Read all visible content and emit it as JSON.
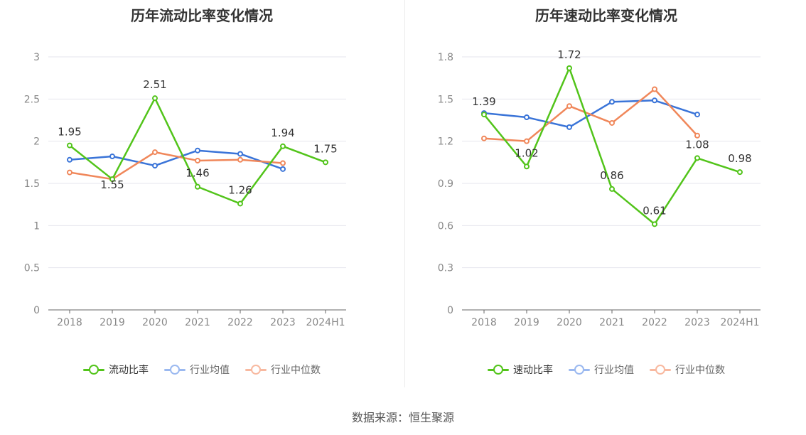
{
  "source_label": "数据来源：恒生聚源",
  "colors": {
    "company": "#52c41a",
    "avg": "#3a74d8",
    "median": "#f0875a",
    "avg_legend": "#9bb9f0",
    "median_legend": "#f8b9a0"
  },
  "chart_data": [
    {
      "type": "line",
      "title": "历年流动比率变化情况",
      "categories": [
        "2018",
        "2019",
        "2020",
        "2021",
        "2022",
        "2023",
        "2024H1"
      ],
      "yticks": [
        "0",
        "0.5",
        "1",
        "1.5",
        "2",
        "2.5",
        "3"
      ],
      "ylim": [
        0,
        3
      ],
      "grid": true,
      "legend_position": "bottom",
      "series": [
        {
          "name": "流动比率",
          "key": "company",
          "values": [
            1.95,
            1.55,
            2.51,
            1.46,
            1.26,
            1.94,
            1.75
          ],
          "labels": [
            "1.95",
            "1.55",
            "2.51",
            "1.46",
            "1.26",
            "1.94",
            "1.75"
          ]
        },
        {
          "name": "行业均值",
          "key": "avg",
          "values": [
            1.78,
            1.82,
            1.71,
            1.89,
            1.85,
            1.67,
            null
          ]
        },
        {
          "name": "行业中位数",
          "key": "median",
          "values": [
            1.63,
            1.55,
            1.87,
            1.77,
            1.78,
            1.74,
            null
          ]
        }
      ]
    },
    {
      "type": "line",
      "title": "历年速动比率变化情况",
      "categories": [
        "2018",
        "2019",
        "2020",
        "2021",
        "2022",
        "2023",
        "2024H1"
      ],
      "yticks": [
        "0",
        "0.3",
        "0.6",
        "0.9",
        "1.2",
        "1.5",
        "1.8"
      ],
      "ylim": [
        0,
        1.8
      ],
      "grid": true,
      "legend_position": "bottom",
      "series": [
        {
          "name": "速动比率",
          "key": "company",
          "values": [
            1.39,
            1.02,
            1.72,
            0.86,
            0.61,
            1.08,
            0.98
          ],
          "labels": [
            "1.39",
            "1.02",
            "1.72",
            "0.86",
            "0.61",
            "1.08",
            "0.98"
          ]
        },
        {
          "name": "行业均值",
          "key": "avg",
          "values": [
            1.4,
            1.37,
            1.3,
            1.48,
            1.49,
            1.39,
            null
          ]
        },
        {
          "name": "行业中位数",
          "key": "median",
          "values": [
            1.22,
            1.2,
            1.45,
            1.33,
            1.57,
            1.24,
            null
          ]
        }
      ]
    }
  ]
}
